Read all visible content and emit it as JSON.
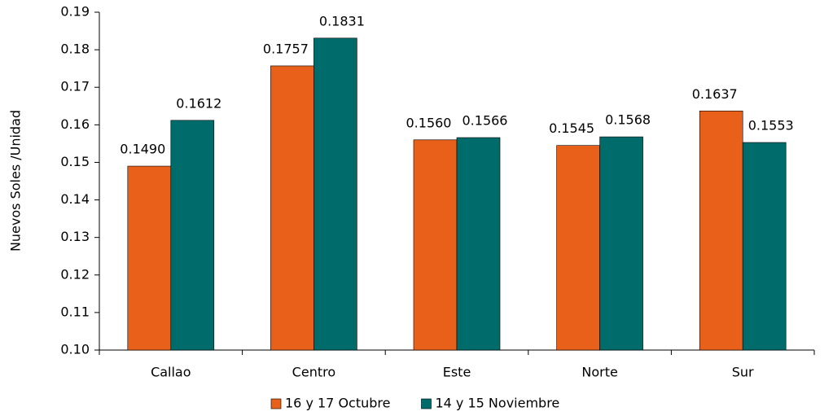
{
  "chart_data": {
    "type": "bar",
    "y_label": "Nuevos Soles /Unidad",
    "categories": [
      "Callao",
      "Centro",
      "Este",
      "Norte",
      "Sur"
    ],
    "series": [
      {
        "name": "16 y 17 Octubre",
        "color": "#e8601a",
        "values": [
          0.149,
          0.1757,
          0.156,
          0.1545,
          0.1637
        ],
        "value_labels": [
          "0.1490",
          "0.1757",
          "0.1560",
          "0.1545",
          "0.1637"
        ]
      },
      {
        "name": "14 y 15 Noviembre",
        "color": "#006b6b",
        "values": [
          0.1612,
          0.1831,
          0.1566,
          0.1568,
          0.1553
        ],
        "value_labels": [
          "0.1612",
          "0.1831",
          "0.1566",
          "0.1568",
          "0.1553"
        ]
      }
    ],
    "ylim": [
      0.1,
      0.19
    ],
    "yticks": [
      {
        "value": 0.1,
        "label": "0.10"
      },
      0.11,
      0.12,
      0.13,
      0.14,
      0.15,
      0.16,
      0.17,
      0.18,
      0.19
    ],
    "legend": "bottom"
  }
}
